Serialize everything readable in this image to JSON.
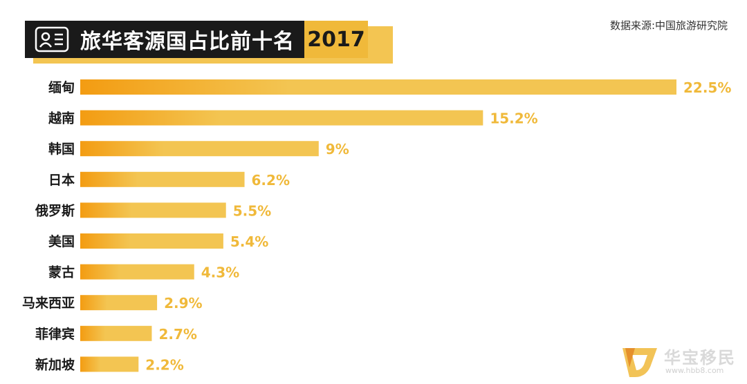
{
  "header": {
    "title": "旅华客源国占比前十名",
    "year": "2017",
    "source": "数据来源:中国旅游研究院"
  },
  "colors": {
    "bar_start": "#f39c12",
    "bar_end": "#f3c552",
    "value_text": "#f0b93a",
    "title_bg": "#1a1a1a",
    "year_bg": "#f0b93a"
  },
  "icons": {
    "title": "id-card-icon",
    "watermark": "brand-logo-icon"
  },
  "watermark": {
    "name": "华宝移民",
    "url": "www.hbb8.com"
  },
  "chart_data": {
    "type": "bar",
    "orientation": "horizontal",
    "categories": [
      "缅甸",
      "越南",
      "韩国",
      "日本",
      "俄罗斯",
      "美国",
      "蒙古",
      "马来西亚",
      "菲律宾",
      "新加坡"
    ],
    "values": [
      22.5,
      15.2,
      9,
      6.2,
      5.5,
      5.4,
      4.3,
      2.9,
      2.7,
      2.2
    ],
    "value_labels": [
      "22.5%",
      "15.2%",
      "9%",
      "6.2%",
      "5.5%",
      "5.4%",
      "4.3%",
      "2.9%",
      "2.7%",
      "2.2%"
    ],
    "title": "旅华客源国占比前十名",
    "xlim": [
      0,
      22.5
    ],
    "grid": false,
    "legend": "none"
  }
}
